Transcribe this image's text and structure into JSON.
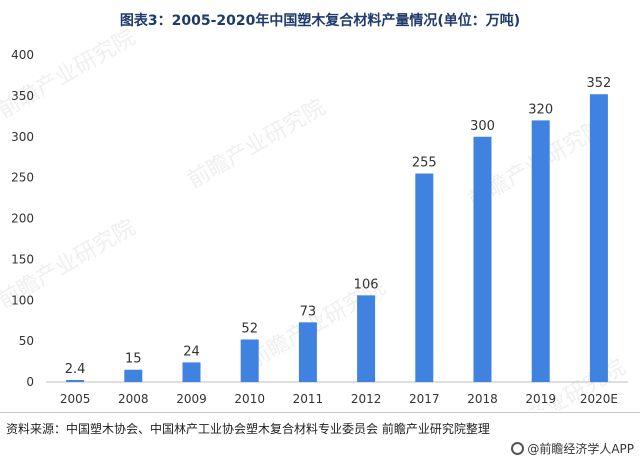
{
  "title": "图表3：2005-2020年中国塑木复合材料产量情况(单位：万吨)",
  "source": "资料来源：中国塑木协会、中国林产工业协会塑木复合材料专业委员会 前瞻产业研究院整理",
  "brand": "@前瞻经济学人APP",
  "watermark": "前瞻产业研究院",
  "colors": {
    "bar": "#3f82df",
    "title": "#1f3a6e"
  },
  "chart_data": {
    "type": "bar",
    "title": "图表3：2005-2020年中国塑木复合材料产量情况(单位：万吨)",
    "categories": [
      "2005",
      "2008",
      "2009",
      "2010",
      "2011",
      "2012",
      "2017",
      "2018",
      "2019",
      "2020E"
    ],
    "values": [
      2.4,
      15,
      24,
      52,
      73,
      106,
      255,
      300,
      320,
      352
    ],
    "data_labels": [
      "2.4",
      "15",
      "24",
      "52",
      "73",
      "106",
      "255",
      "300",
      "320",
      "352"
    ],
    "y_ticks": [
      0,
      50,
      100,
      150,
      200,
      250,
      300,
      350,
      400
    ],
    "ylim": [
      0,
      400
    ],
    "xlabel": "",
    "ylabel": "",
    "grid": false,
    "legend": "none"
  }
}
